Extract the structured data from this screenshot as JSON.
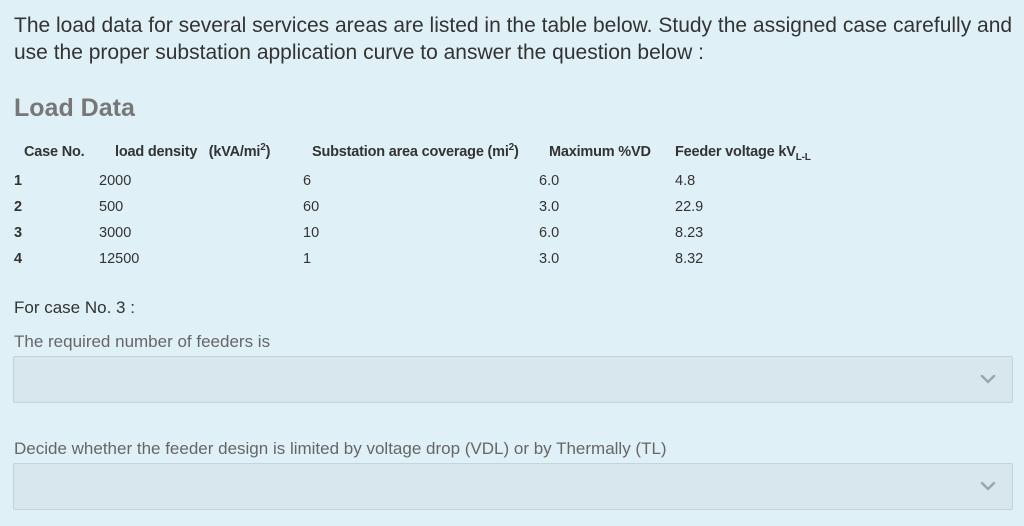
{
  "intro": {
    "line1": "The load data for several services areas are listed in the table below. Study the assigned case carefully and",
    "line2": "use the proper substation  application curve to answer the question below :"
  },
  "section_title": "Load Data",
  "table": {
    "headers": {
      "case": "Case No.",
      "density_a": "load density",
      "density_b": "(kVA/mi",
      "density_sup": "2",
      "density_c": ")",
      "coverage_a": "Substation area coverage (mi",
      "coverage_sup": "2",
      "coverage_b": ")",
      "vd": "Maximum %VD",
      "fv_a": "Feeder voltage kV",
      "fv_sub": "L-L"
    },
    "rows": [
      {
        "case": "1",
        "density": "2000",
        "coverage": "6",
        "vd": "6.0",
        "fv": "4.8"
      },
      {
        "case": "2",
        "density": "500",
        "coverage": "60",
        "vd": "3.0",
        "fv": "22.9"
      },
      {
        "case": "3",
        "density": "3000",
        "coverage": "10",
        "vd": "6.0",
        "fv": "8.23"
      },
      {
        "case": "4",
        "density": "12500",
        "coverage": "1",
        "vd": "3.0",
        "fv": "8.32"
      }
    ]
  },
  "prompt": "For case No. 3 :",
  "questions": [
    {
      "label": "The required number of feeders is",
      "value": ""
    },
    {
      "label": "Decide whether the feeder design is limited by voltage drop (VDL) or by Thermally (TL)",
      "value": ""
    }
  ],
  "icons": {
    "dropdown": "chevron-down-icon"
  },
  "colors": {
    "background": "#dff1f7",
    "select_bg": "#d7e7ed",
    "chevron": "#9aa6ab"
  }
}
